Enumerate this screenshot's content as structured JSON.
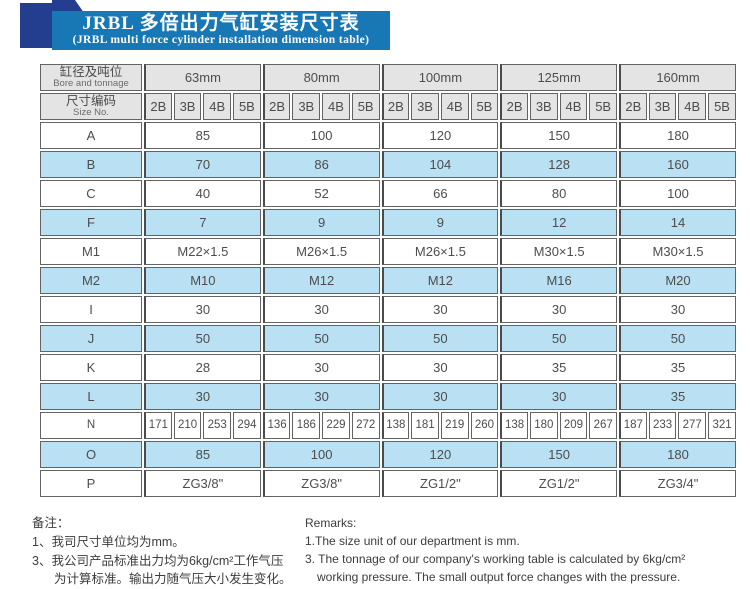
{
  "banner": {
    "title_zh": "JRBL 多倍出力气缸安装尺寸表",
    "title_en": "(JRBL multi force cylinder installation dimension table)",
    "banner_color": "#1878b6",
    "accent_color": "#233e8f"
  },
  "table": {
    "corner_zh": "缸径及吨位",
    "corner_en": "Bore and tonnage",
    "size_no_zh": "尺寸编码",
    "size_no_en": "Size No.",
    "groups": [
      "63mm",
      "80mm",
      "100mm",
      "125mm",
      "160mm"
    ],
    "subcols": [
      "2B",
      "3B",
      "4B",
      "5B"
    ],
    "shade_color": "#b9e0f3",
    "header_gray": "#e4e4e4",
    "rows": [
      {
        "label": "A",
        "shaded": false,
        "values": [
          "85",
          "100",
          "120",
          "150",
          "180"
        ]
      },
      {
        "label": "B",
        "shaded": true,
        "values": [
          "70",
          "86",
          "104",
          "128",
          "160"
        ]
      },
      {
        "label": "C",
        "shaded": false,
        "values": [
          "40",
          "52",
          "66",
          "80",
          "100"
        ]
      },
      {
        "label": "F",
        "shaded": true,
        "values": [
          "7",
          "9",
          "9",
          "12",
          "14"
        ]
      },
      {
        "label": "M1",
        "shaded": false,
        "values": [
          "M22×1.5",
          "M26×1.5",
          "M26×1.5",
          "M30×1.5",
          "M30×1.5"
        ]
      },
      {
        "label": "M2",
        "shaded": true,
        "values": [
          "M10",
          "M12",
          "M12",
          "M16",
          "M20"
        ]
      },
      {
        "label": "I",
        "shaded": false,
        "values": [
          "30",
          "30",
          "30",
          "30",
          "30"
        ]
      },
      {
        "label": "J",
        "shaded": true,
        "values": [
          "50",
          "50",
          "50",
          "50",
          "50"
        ]
      },
      {
        "label": "K",
        "shaded": false,
        "values": [
          "28",
          "30",
          "30",
          "35",
          "35"
        ]
      },
      {
        "label": "L",
        "shaded": true,
        "values": [
          "30",
          "30",
          "30",
          "30",
          "35"
        ]
      },
      {
        "label": "N",
        "shaded": false,
        "values": [
          "171",
          "210",
          "253",
          "294",
          "136",
          "186",
          "229",
          "272",
          "138",
          "181",
          "219",
          "260",
          "138",
          "180",
          "209",
          "267",
          "187",
          "233",
          "277",
          "321"
        ]
      },
      {
        "label": "O",
        "shaded": true,
        "values": [
          "85",
          "100",
          "120",
          "150",
          "180"
        ]
      },
      {
        "label": "P",
        "shaded": false,
        "values": [
          "ZG3/8\"",
          "ZG3/8\"",
          "ZG1/2\"",
          "ZG1/2\"",
          "ZG3/4\""
        ]
      }
    ]
  },
  "notes_zh": {
    "heading": "备注：",
    "lines": [
      "1、我司尺寸单位均为mm。",
      "3、我公司产品标准出力均为6kg/cm²工作气压",
      "为计算标准。输出力随气压大小发生变化。"
    ],
    "indents": [
      0,
      0,
      1
    ]
  },
  "notes_en": {
    "heading": "Remarks:",
    "lines": [
      "1.The size unit of our department is mm.",
      "3. The tonnage of our company's working table is calculated by 6kg/cm²",
      "working pressure. The small output force changes with the pressure."
    ],
    "indents": [
      0,
      0,
      1
    ]
  }
}
